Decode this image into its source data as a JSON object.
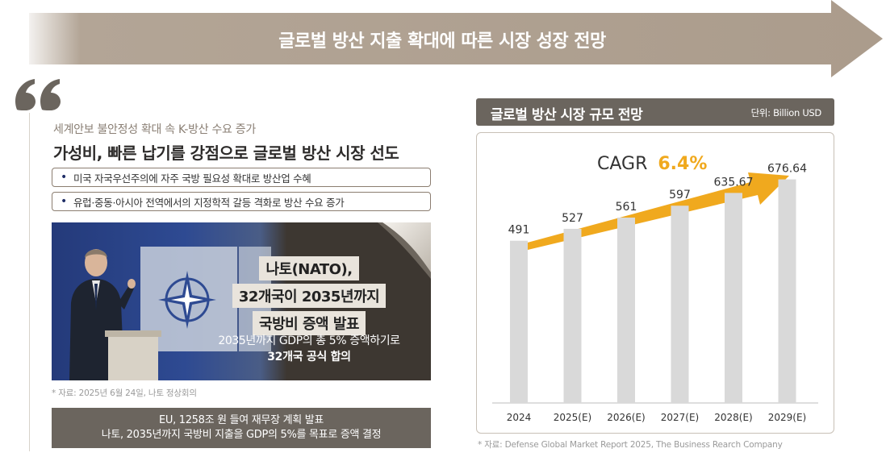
{
  "banner": {
    "title": "글로벌 방산 지출 확대에 따른 시장 성장 전망"
  },
  "left": {
    "subtitle": "세계안보 불안정성 확대 속 K-방산 수요 증가",
    "headline": "가성비, 빠른 납기를 강점으로 글로벌 방산 시장 선도",
    "bullets": [
      "미국 자국우선주의에 자주 국방 필요성 확대로 방산업 수혜",
      "유럽·중동·아시아 전역에서의 지정학적 갈등 격화로 방산 수요 증가"
    ],
    "nato": {
      "line1": "나토(NATO),",
      "line2": "32개국이 2035년까지",
      "line3": "국방비 증액 발표",
      "sub1": "2035년까지 GDP의 총 5% 증액하기로",
      "sub2": "32개국 공식 합의"
    },
    "source": "* 자료: 2025년 6월 24일, 나토 정상회의",
    "eu_box": {
      "line1": "EU, 1258조 원 들여 재무장 계획 발표",
      "line2": "나토, 2035년까지 국방비 지출을 GDP의 5%를 목표로 증액 결정"
    }
  },
  "right": {
    "header_title": "글로벌 방산 시장 규모 전망",
    "unit": "단위: Billion USD",
    "cagr_label": "CAGR",
    "cagr_value": "6.4%",
    "source": "* 자료: Defense Global Market Report 2025, The Business Rearch Company"
  },
  "colors": {
    "banner": "#b3a596",
    "header": "#6b655e",
    "bar": "#d9d9d9",
    "accent": "#f0a91e",
    "nato_badge": "#e9e4dc"
  },
  "chart_data": {
    "type": "bar",
    "title": "글로벌 방산 시장 규모 전망",
    "ylabel": "Billion USD",
    "categories": [
      "2024",
      "2025(E)",
      "2026(E)",
      "2027(E)",
      "2028(E)",
      "2029(E)"
    ],
    "values": [
      491,
      527,
      561,
      597,
      635.67,
      676.64
    ],
    "value_labels": [
      "491",
      "527",
      "561",
      "597",
      "635.67",
      "676.64"
    ],
    "ylim": [
      0,
      800
    ],
    "grid": false,
    "annotation": "CAGR 6.4%"
  }
}
